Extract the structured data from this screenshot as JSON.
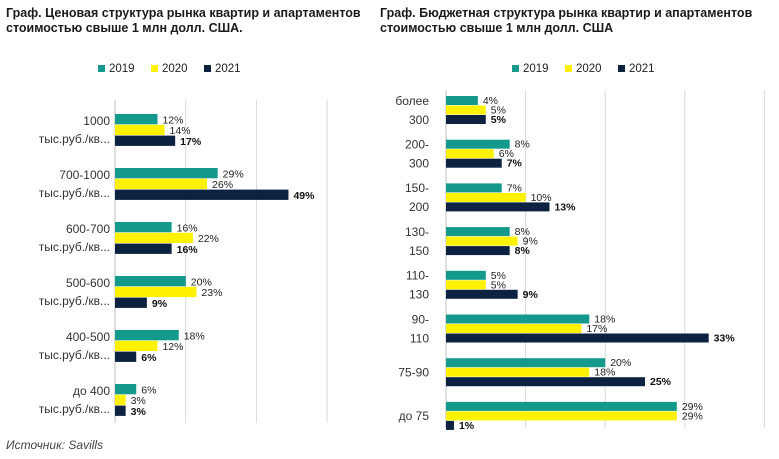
{
  "colors": {
    "2019": "#139a8c",
    "2020": "#fff200",
    "2021": "#0d2240",
    "grid": "#d9d9d9"
  },
  "source": "Источник: Savills",
  "chart_data": [
    {
      "type": "bar",
      "orientation": "horizontal",
      "title": "Граф. Ценовая структура рынка квартир и апартаментов стоимостью свыше 1 млн долл. США.",
      "legend": [
        "2019",
        "2020",
        "2021"
      ],
      "legend_position": "top",
      "categories": [
        [
          "1000",
          "тыс.руб./кв..."
        ],
        [
          "700-1000",
          "тыс.руб./кв..."
        ],
        [
          "600-700",
          "тыс.руб./кв..."
        ],
        [
          "500-600",
          "тыс.руб./кв..."
        ],
        [
          "400-500",
          "тыс.руб./кв..."
        ],
        [
          "до 400",
          "тыс.руб./кв..."
        ]
      ],
      "series": [
        {
          "name": "2019",
          "values": [
            12,
            29,
            16,
            20,
            18,
            6
          ]
        },
        {
          "name": "2020",
          "values": [
            14,
            26,
            22,
            23,
            12,
            3
          ]
        },
        {
          "name": "2021",
          "values": [
            17,
            49,
            16,
            9,
            6,
            3
          ]
        }
      ],
      "unit": "%",
      "xlim": [
        0,
        60
      ],
      "grid": true
    },
    {
      "type": "bar",
      "orientation": "horizontal",
      "title": "Граф. Бюджетная структура рынка квартир и апартаментов стоимостью свыше 1 млн долл. США",
      "legend": [
        "2019",
        "2020",
        "2021"
      ],
      "legend_position": "top",
      "categories": [
        [
          "более",
          "300"
        ],
        [
          "200-",
          "300"
        ],
        [
          "150-",
          "200"
        ],
        [
          "130-",
          "150"
        ],
        [
          "110-",
          "130"
        ],
        [
          "90-",
          "110"
        ],
        [
          "75-90"
        ],
        [
          "до 75"
        ]
      ],
      "series": [
        {
          "name": "2019",
          "values": [
            4,
            8,
            7,
            8,
            5,
            18,
            20,
            29
          ]
        },
        {
          "name": "2020",
          "values": [
            5,
            6,
            10,
            9,
            5,
            17,
            18,
            29
          ]
        },
        {
          "name": "2021",
          "values": [
            5,
            7,
            13,
            8,
            9,
            33,
            25,
            1
          ]
        }
      ],
      "unit": "%",
      "xlim": [
        0,
        40
      ],
      "grid": true
    }
  ]
}
